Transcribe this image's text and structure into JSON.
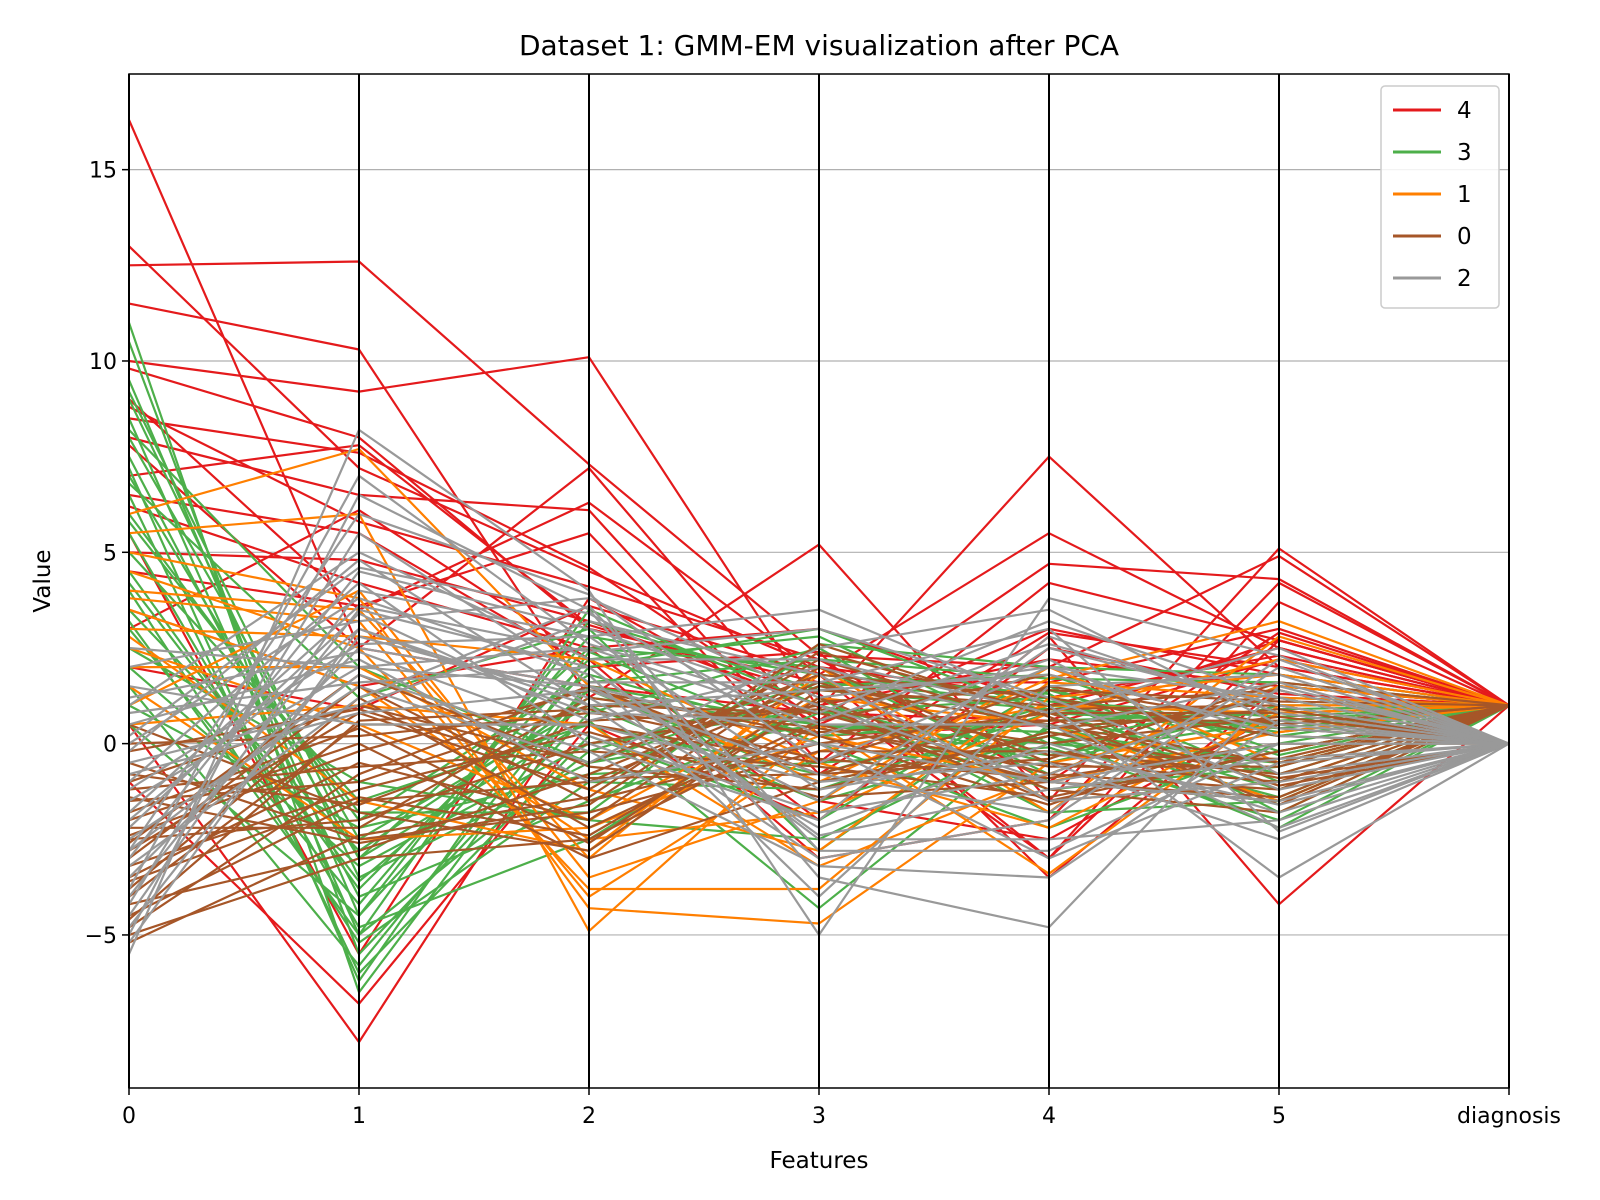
{
  "chart_data": {
    "type": "parallel-coordinates",
    "title": "Dataset 1: GMM-EM visualization after PCA",
    "xlabel": "Features",
    "ylabel": "Value",
    "categories": [
      "0",
      "1",
      "2",
      "3",
      "4",
      "5",
      "diagnosis"
    ],
    "ylim": [
      -9.0,
      17.5
    ],
    "yticks": [
      -5,
      0,
      5,
      10,
      15
    ],
    "ytick_labels": [
      "−5",
      "0",
      "5",
      "10",
      "15"
    ],
    "grid": "horizontal",
    "legend_position": "top-right",
    "series": [
      {
        "name": "4",
        "color": "#e41a1c",
        "lines": [
          [
            16.3,
            2.5,
            1.5,
            0.8,
            0.6,
            2.7,
            1
          ],
          [
            13.0,
            7.2,
            4.5,
            2.0,
            1.2,
            2.3,
            1
          ],
          [
            12.5,
            12.6,
            7.3,
            2.3,
            2.0,
            4.9,
            1
          ],
          [
            11.5,
            10.3,
            1.2,
            5.2,
            -1.5,
            5.1,
            1
          ],
          [
            10.0,
            9.2,
            10.1,
            0.9,
            7.5,
            2.0,
            1
          ],
          [
            9.0,
            3.5,
            6.3,
            1.8,
            5.5,
            2.5,
            1
          ],
          [
            8.5,
            7.6,
            4.6,
            0.6,
            4.7,
            4.3,
            1
          ],
          [
            8.0,
            6.5,
            6.1,
            -0.5,
            4.2,
            2.7,
            1
          ],
          [
            7.0,
            7.8,
            3.1,
            1.3,
            -3.0,
            3.7,
            1
          ],
          [
            6.2,
            4.2,
            2.5,
            -2.0,
            2.8,
            -4.2,
            1
          ],
          [
            5.0,
            4.8,
            3.2,
            1.0,
            2.2,
            1.5,
            1
          ],
          [
            3.5,
            1.5,
            2.5,
            3.0,
            1.0,
            2.5,
            1
          ],
          [
            2.0,
            0.9,
            3.6,
            1.8,
            -3.0,
            2.7,
            1
          ],
          [
            0.5,
            -7.8,
            1.5,
            -1.5,
            -2.5,
            0.8,
            1
          ],
          [
            -1.0,
            -6.8,
            0.5,
            -2.0,
            2.5,
            1.3,
            1
          ],
          [
            6.5,
            5.5,
            2.0,
            2.4,
            -3.5,
            1.5,
            1
          ],
          [
            4.5,
            3.6,
            5.5,
            -0.8,
            2.9,
            2.0,
            1
          ],
          [
            9.8,
            8.0,
            3.0,
            1.6,
            1.6,
            3.0,
            1
          ],
          [
            7.8,
            2.5,
            7.2,
            0.2,
            0.5,
            2.2,
            1
          ],
          [
            3.0,
            6.1,
            2.2,
            -3.0,
            -2.0,
            4.2,
            1
          ],
          [
            5.5,
            -5.5,
            3.8,
            0.5,
            3.0,
            1.8,
            1
          ],
          [
            8.8,
            5.8,
            4.1,
            2.2,
            -1.0,
            2.9,
            1
          ]
        ]
      },
      {
        "name": "3",
        "color": "#4daf4a",
        "lines": [
          [
            11.0,
            -6.5,
            1.5,
            0.5,
            0.3,
            -0.5,
            1
          ],
          [
            10.5,
            -5.5,
            0.8,
            2.5,
            -1.0,
            -1.5,
            1
          ],
          [
            9.5,
            -4.5,
            2.0,
            3.0,
            0.8,
            0.5,
            1
          ],
          [
            9.0,
            -3.5,
            -0.5,
            1.5,
            1.8,
            -0.2,
            1
          ],
          [
            8.5,
            -5.0,
            3.5,
            1.0,
            -0.5,
            1.0,
            1
          ],
          [
            8.0,
            -2.5,
            1.0,
            -1.5,
            0.2,
            -2.2,
            1
          ],
          [
            7.5,
            -4.0,
            -1.5,
            0.8,
            1.2,
            0.3,
            1
          ],
          [
            7.0,
            -3.0,
            2.5,
            2.0,
            -0.8,
            1.5,
            1
          ],
          [
            6.5,
            -6.0,
            0.2,
            -2.0,
            1.5,
            -1.0,
            1
          ],
          [
            6.0,
            -2.0,
            1.8,
            0.2,
            0.6,
            0.8,
            1
          ],
          [
            5.5,
            -4.8,
            -2.5,
            1.2,
            -1.8,
            -1.5,
            1
          ],
          [
            5.0,
            -1.5,
            0.5,
            -0.8,
            1.0,
            0.2,
            1
          ],
          [
            4.5,
            -3.8,
            2.2,
            2.8,
            0.0,
            1.2,
            1
          ],
          [
            4.0,
            -5.2,
            -1.0,
            -1.2,
            0.8,
            -0.8,
            1
          ],
          [
            3.5,
            -2.8,
            1.2,
            0.5,
            -0.3,
            0.6,
            1
          ],
          [
            3.0,
            -4.2,
            2.8,
            1.8,
            1.3,
            -1.8,
            1
          ],
          [
            2.5,
            -1.0,
            -2.0,
            -2.5,
            0.4,
            0.9,
            1
          ],
          [
            2.0,
            -3.2,
            0.0,
            0.9,
            -1.2,
            -0.6,
            1
          ],
          [
            1.5,
            -5.8,
            1.6,
            2.2,
            1.7,
            1.6,
            1
          ],
          [
            1.0,
            -2.2,
            -0.8,
            -0.5,
            -0.1,
            -2.0,
            1
          ],
          [
            0.5,
            -4.5,
            3.2,
            1.4,
            0.9,
            0.4,
            1
          ],
          [
            9.2,
            -3.0,
            0.6,
            -4.3,
            0.5,
            -1.2,
            1
          ],
          [
            7.2,
            -6.2,
            2.4,
            0.0,
            -2.2,
            0.0,
            1
          ],
          [
            5.8,
            -1.8,
            -1.8,
            2.6,
            2.0,
            1.8,
            1
          ],
          [
            4.2,
            -3.6,
            1.4,
            -1.0,
            0.2,
            -1.4,
            1
          ],
          [
            3.2,
            -5.0,
            -0.2,
            1.6,
            1.1,
            0.7,
            1
          ],
          [
            8.2,
            2.0,
            -0.5,
            0.5,
            0.0,
            -0.5,
            1
          ],
          [
            6.8,
            1.2,
            3.0,
            -2.8,
            1.4,
            -0.3,
            1
          ]
        ]
      },
      {
        "name": "1",
        "color": "#ff7f00",
        "lines": [
          [
            6.0,
            7.7,
            1.5,
            -1.0,
            1.7,
            3.2,
            1
          ],
          [
            5.5,
            6.0,
            -4.9,
            0.5,
            -3.4,
            1.0,
            1
          ],
          [
            5.0,
            3.8,
            -4.3,
            -4.7,
            -0.5,
            0.5,
            1
          ],
          [
            4.5,
            2.5,
            -3.8,
            -3.8,
            1.2,
            1.8,
            1
          ],
          [
            4.0,
            3.5,
            -3.0,
            2.0,
            -1.5,
            -1.0,
            1
          ],
          [
            3.5,
            1.5,
            -2.5,
            -1.8,
            0.8,
            2.2,
            1
          ],
          [
            3.0,
            2.8,
            2.2,
            -0.5,
            -2.2,
            0.8,
            1
          ],
          [
            2.5,
            0.5,
            -2.0,
            1.2,
            0.5,
            -1.5,
            1
          ],
          [
            2.0,
            2.0,
            -1.2,
            -2.8,
            1.6,
            1.2,
            1
          ],
          [
            1.5,
            -2.5,
            -2.2,
            0.2,
            -1.0,
            0.3,
            1
          ],
          [
            1.0,
            4.0,
            -3.5,
            -1.5,
            2.0,
            -0.5,
            1
          ],
          [
            0.5,
            1.0,
            0.5,
            -3.2,
            -0.8,
            1.5,
            1
          ],
          [
            3.8,
            3.2,
            -4.0,
            -0.2,
            1.0,
            0.8,
            1
          ],
          [
            2.8,
            -1.5,
            -2.8,
            1.8,
            -1.8,
            2.8,
            1
          ]
        ]
      },
      {
        "name": "0",
        "color": "#a65628",
        "lines": [
          [
            -5.0,
            -3.0,
            -2.5,
            0.5,
            -1.0,
            -1.5,
            1
          ],
          [
            -4.5,
            -1.5,
            -1.0,
            1.5,
            0.5,
            -0.5,
            1
          ],
          [
            -4.0,
            0.5,
            0.5,
            -0.5,
            1.5,
            0.5,
            1
          ],
          [
            -3.5,
            -0.5,
            -2.0,
            2.0,
            -0.5,
            -1.0,
            1
          ],
          [
            -3.0,
            1.5,
            -1.5,
            0.0,
            0.8,
            0.8,
            0
          ],
          [
            -2.5,
            -2.0,
            0.0,
            1.0,
            -1.5,
            -0.2,
            1
          ],
          [
            -2.0,
            0.0,
            -3.0,
            -1.0,
            0.2,
            1.2,
            0
          ],
          [
            -1.5,
            -1.0,
            1.0,
            0.8,
            -0.8,
            -1.2,
            1
          ],
          [
            -1.0,
            1.0,
            -0.5,
            1.8,
            1.2,
            0.2,
            0
          ],
          [
            -0.5,
            -2.5,
            -1.8,
            -0.2,
            -0.2,
            -0.8,
            1
          ],
          [
            0.0,
            0.2,
            0.8,
            0.3,
            0.6,
            0.6,
            0
          ],
          [
            0.5,
            -1.8,
            -2.8,
            1.2,
            -1.2,
            -1.8,
            1
          ],
          [
            -4.8,
            -0.8,
            1.5,
            -0.8,
            0.9,
            1.0,
            0
          ],
          [
            -4.2,
            -2.8,
            -0.8,
            1.6,
            -0.3,
            -0.4,
            1
          ],
          [
            -3.8,
            1.2,
            -2.2,
            0.6,
            1.8,
            0.4,
            0
          ],
          [
            -3.2,
            -1.2,
            0.3,
            -1.4,
            -1.0,
            -1.4,
            1
          ],
          [
            -2.8,
            0.8,
            -1.2,
            2.2,
            0.4,
            0.9,
            0
          ],
          [
            -2.2,
            -2.2,
            1.2,
            0.4,
            -0.6,
            -0.6,
            1
          ],
          [
            -1.8,
            0.4,
            -2.6,
            1.4,
            1.0,
            1.4,
            0
          ],
          [
            -1.2,
            -0.6,
            -0.2,
            -0.6,
            -1.4,
            -0.2,
            1
          ],
          [
            -0.8,
            -1.6,
            0.6,
            0.9,
            0.0,
            0.7,
            0
          ],
          [
            -5.2,
            -2.4,
            -1.4,
            2.6,
            0.7,
            -1.6,
            1
          ],
          [
            -4.6,
            0.6,
            0.9,
            -0.4,
            -0.9,
            0.0,
            0
          ],
          [
            -3.6,
            -1.4,
            -2.4,
            1.1,
            1.4,
            1.1,
            1
          ],
          [
            -2.6,
            1.8,
            -0.6,
            -1.2,
            0.3,
            -0.9,
            0
          ],
          [
            -2.4,
            -0.2,
            1.4,
            0.2,
            -1.6,
            0.5,
            1
          ],
          [
            -1.4,
            -2.6,
            -1.6,
            2.4,
            0.8,
            -1.1,
            0
          ],
          [
            -0.2,
            0.9,
            -0.9,
            -0.8,
            -0.4,
            1.6,
            1
          ]
        ]
      },
      {
        "name": "2",
        "color": "#999999",
        "lines": [
          [
            -5.5,
            8.2,
            4.0,
            -5.0,
            3.8,
            2.3,
            0
          ],
          [
            -5.0,
            6.5,
            3.5,
            -3.5,
            -4.8,
            1.5,
            0
          ],
          [
            -4.5,
            4.0,
            2.8,
            3.5,
            1.0,
            -3.5,
            0
          ],
          [
            -4.0,
            3.5,
            2.0,
            -2.5,
            -2.5,
            -2.0,
            0
          ],
          [
            -3.5,
            2.5,
            1.5,
            -1.5,
            2.5,
            1.0,
            0
          ],
          [
            -3.0,
            4.5,
            3.0,
            1.0,
            -1.0,
            -1.5,
            0
          ],
          [
            -2.5,
            1.5,
            -0.5,
            2.5,
            3.5,
            0.5,
            0
          ],
          [
            -2.0,
            3.0,
            1.0,
            -3.0,
            -2.0,
            2.0,
            0
          ],
          [
            -1.5,
            2.0,
            2.5,
            0.5,
            0.5,
            -2.2,
            0
          ],
          [
            -1.0,
            4.2,
            0.0,
            -2.0,
            2.8,
            0.8,
            0
          ],
          [
            -0.5,
            1.0,
            3.2,
            1.8,
            -1.5,
            -1.0,
            0
          ],
          [
            0.0,
            3.8,
            1.8,
            -4.0,
            1.5,
            1.8,
            0
          ],
          [
            0.5,
            2.2,
            -1.0,
            0.0,
            -3.0,
            -0.5,
            0
          ],
          [
            1.0,
            5.0,
            2.2,
            2.2,
            0.8,
            2.5,
            0
          ],
          [
            1.5,
            0.5,
            0.5,
            -1.0,
            -0.5,
            -2.5,
            0
          ],
          [
            2.0,
            3.2,
            3.8,
            1.2,
            2.0,
            0.2,
            0
          ],
          [
            -4.8,
            2.8,
            1.2,
            -2.2,
            0.0,
            -1.8,
            0
          ],
          [
            -3.8,
            7.0,
            2.6,
            0.8,
            3.2,
            1.2,
            0
          ],
          [
            -2.8,
            1.8,
            -0.2,
            -3.2,
            -3.5,
            0.6,
            0
          ],
          [
            -1.8,
            3.6,
            2.4,
            3.0,
            1.2,
            -1.2,
            0
          ],
          [
            -0.8,
            0.8,
            1.4,
            -0.8,
            -1.8,
            2.2,
            0
          ],
          [
            0.2,
            4.6,
            3.4,
            0.2,
            2.2,
            -0.8,
            0
          ],
          [
            1.2,
            2.4,
            0.2,
            -1.8,
            -0.8,
            1.4,
            0
          ],
          [
            -4.2,
            5.5,
            1.6,
            1.6,
            3.0,
            -2.3,
            0
          ],
          [
            -3.2,
            1.2,
            3.6,
            -2.8,
            -2.8,
            0.0,
            0
          ],
          [
            -2.2,
            3.4,
            0.6,
            2.0,
            0.4,
            1.6,
            0
          ],
          [
            -1.2,
            2.6,
            2.8,
            -1.2,
            -0.2,
            -1.6,
            0
          ],
          [
            -0.2,
            4.8,
            1.0,
            1.4,
            1.8,
            0.4,
            0
          ],
          [
            0.8,
            1.6,
            2.0,
            -2.4,
            -1.2,
            -0.4,
            0
          ],
          [
            -5.2,
            3.0,
            0.8,
            0.6,
            2.6,
            1.0,
            0
          ],
          [
            2.5,
            2.0,
            1.5,
            0.0,
            -1.0,
            0.0,
            0
          ],
          [
            -2.8,
            6.0,
            3.9,
            -0.5,
            2.0,
            1.2,
            0
          ]
        ]
      }
    ]
  }
}
